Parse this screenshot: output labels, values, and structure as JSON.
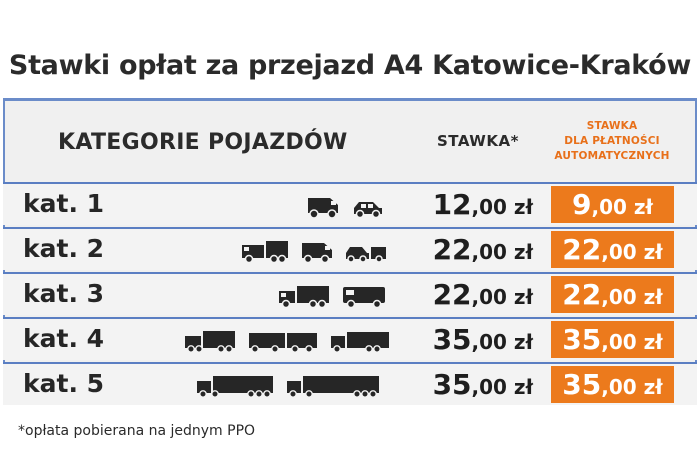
{
  "title": "Stawki opłat za przejazd A4 Katowice-Kraków",
  "header": {
    "categories": "KATEGORIE POJAZDÓW",
    "rate": "STAWKA*",
    "auto_line1": "STAWKA",
    "auto_line2": "DLA PŁATNOŚCI",
    "auto_line3": "AUTOMATYCZNYCH"
  },
  "rows": [
    {
      "label": "kat. 1",
      "price_int": "12",
      "price_dec": ",00 zł",
      "auto_int": "9",
      "auto_dec": ",00 zł",
      "vehicles": [
        "van-icon",
        "car-icon"
      ]
    },
    {
      "label": "kat. 2",
      "price_int": "22",
      "price_dec": ",00 zł",
      "auto_int": "22",
      "auto_dec": ",00 zł",
      "vehicles": [
        "truck-small-icon",
        "van-trailer-icon",
        "car-trailer-icon"
      ]
    },
    {
      "label": "kat. 3",
      "price_int": "22",
      "price_dec": ",00 zł",
      "auto_int": "22",
      "auto_dec": ",00 zł",
      "vehicles": [
        "truck-icon",
        "bus-icon"
      ]
    },
    {
      "label": "kat. 4",
      "price_int": "35",
      "price_dec": ",00 zł",
      "auto_int": "35",
      "auto_dec": ",00 zł",
      "vehicles": [
        "truck-4axle-icon",
        "truck-trailer-icon",
        "bus-large-icon"
      ]
    },
    {
      "label": "kat. 5",
      "price_int": "35",
      "price_dec": ",00 zł",
      "auto_int": "35",
      "auto_dec": ",00 zł",
      "vehicles": [
        "truck-5axle-icon",
        "semi-trailer-icon"
      ]
    }
  ],
  "footnote": "*opłata pobierana na jednym PPO",
  "colors": {
    "accent": "#ec7a1c",
    "border": "#5a7ec2",
    "text": "#262626"
  }
}
